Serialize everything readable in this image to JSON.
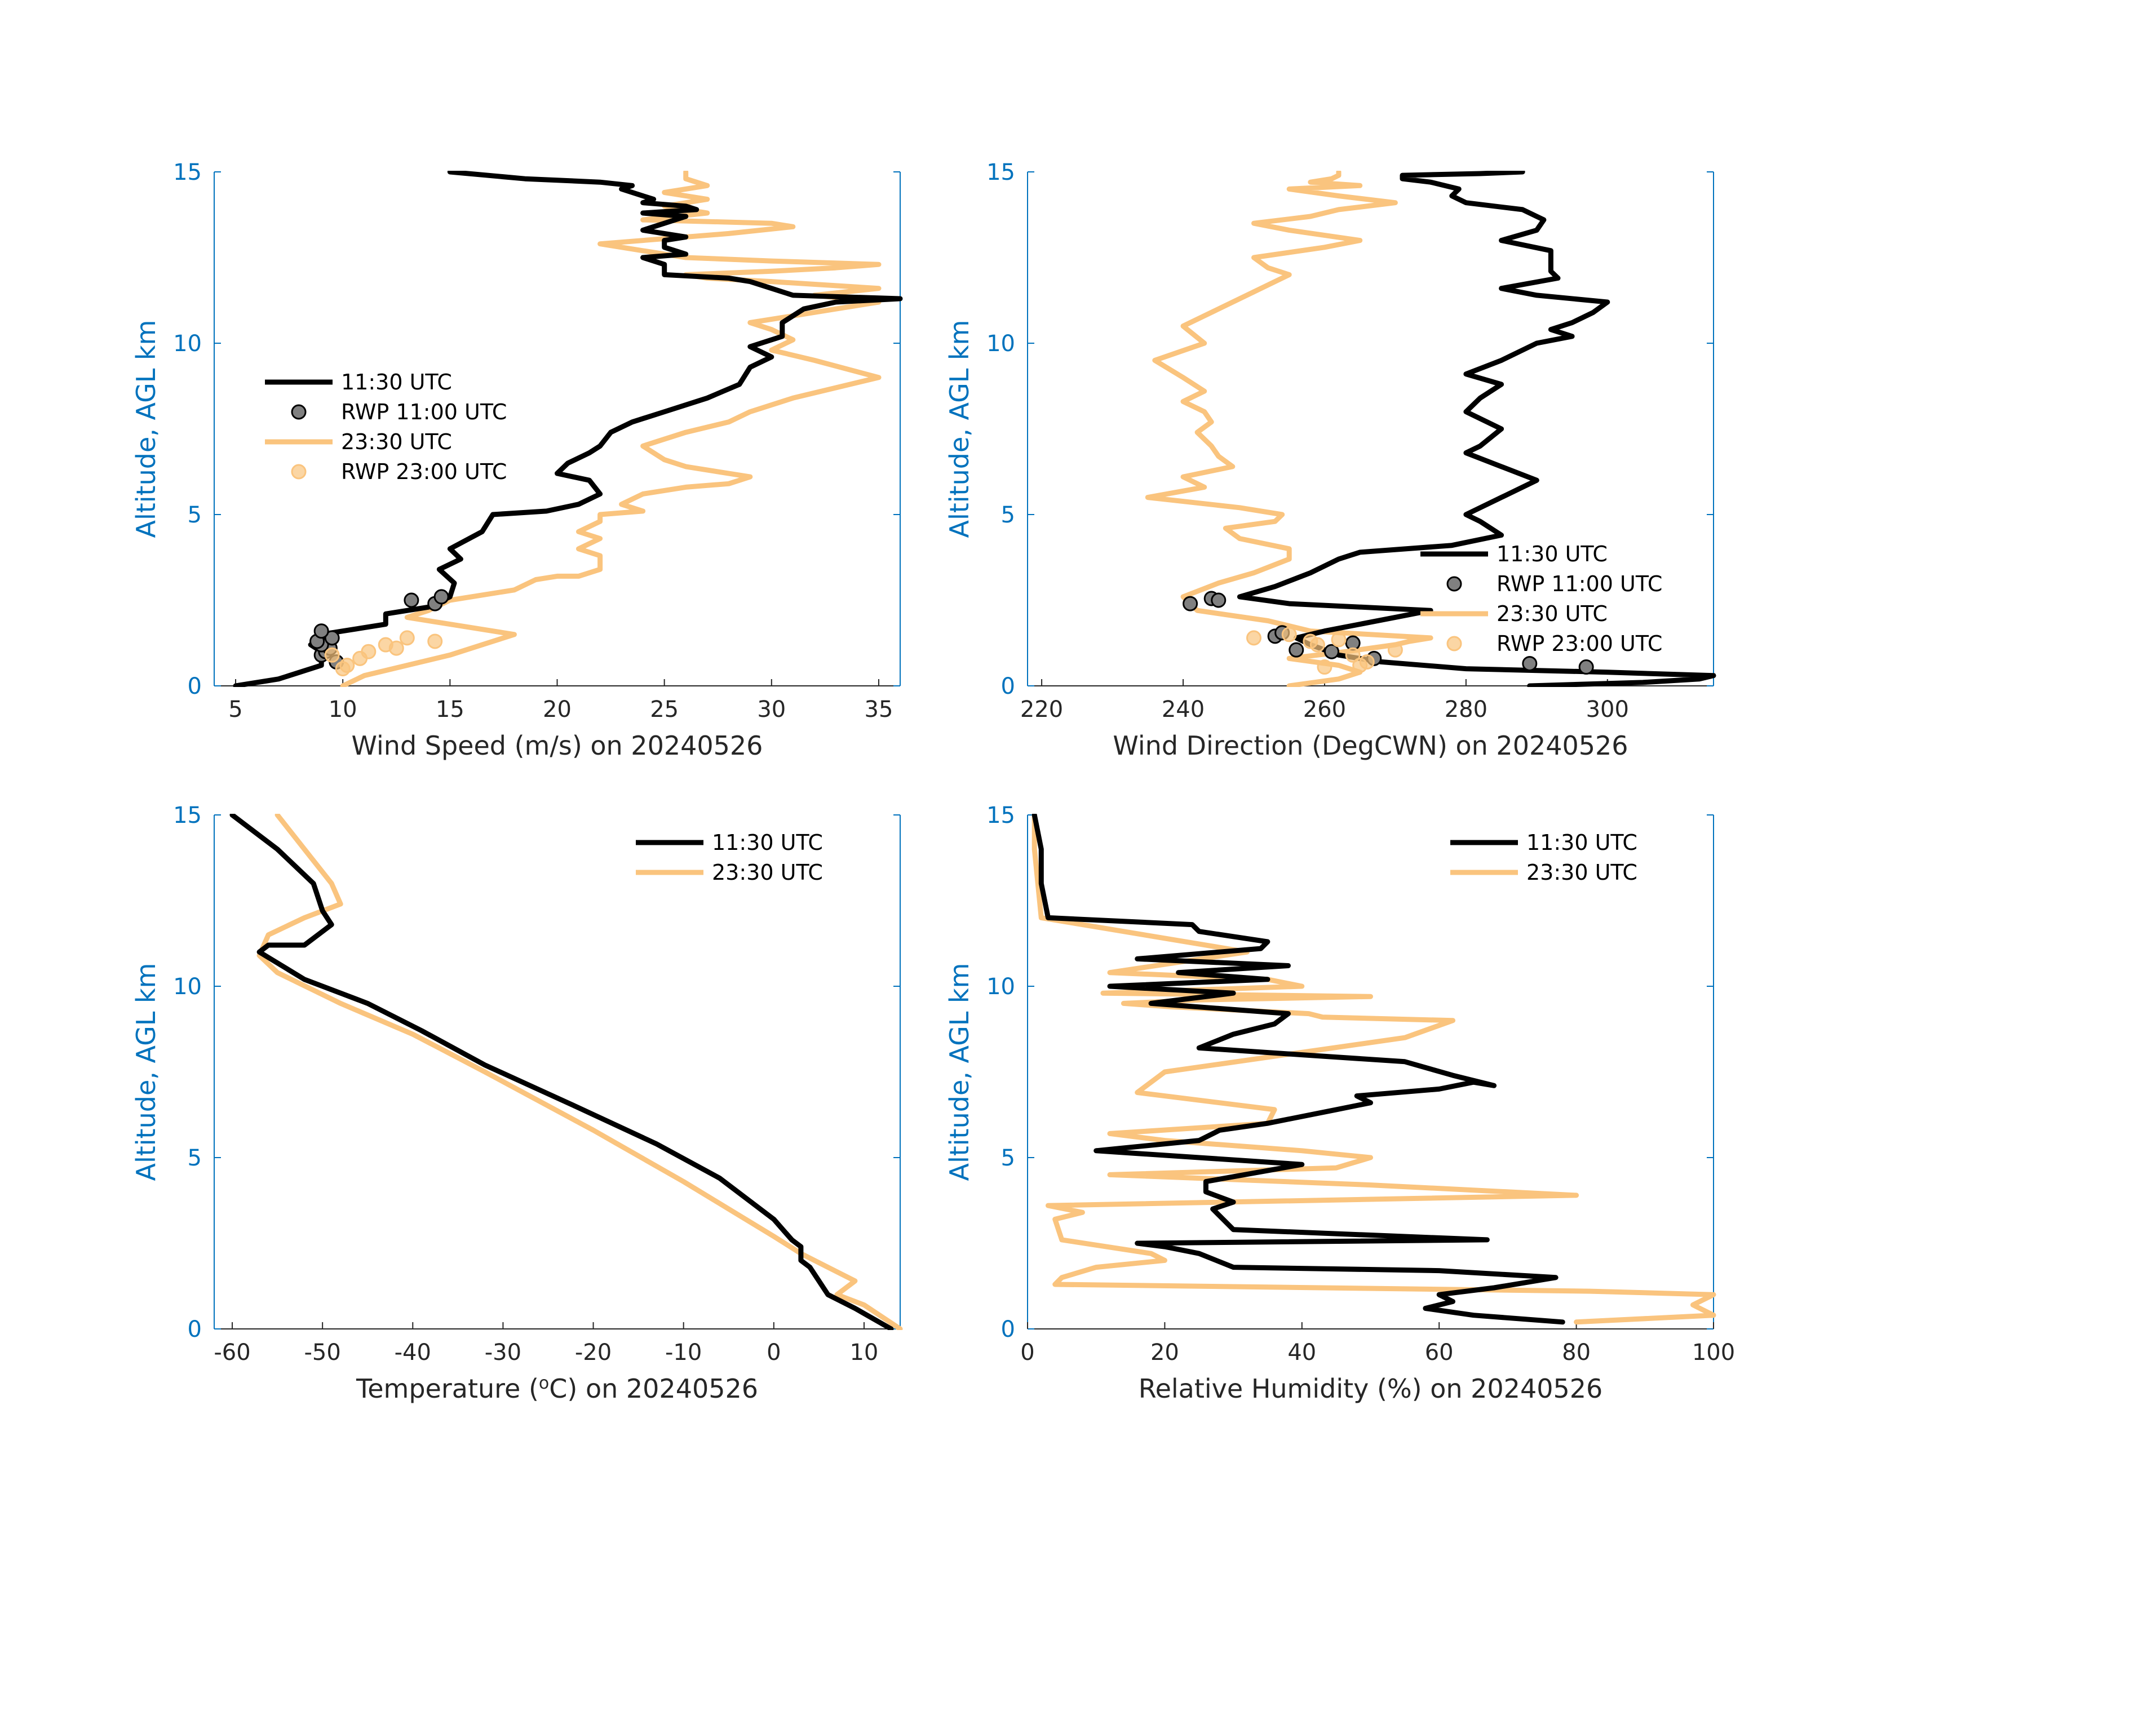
{
  "figure": {
    "date": "20240526"
  },
  "colors": {
    "black": "#000000",
    "orange": "#FAC47E",
    "axis_blue": "#0072BD",
    "marker_gray": "#808080"
  },
  "chart_data": [
    {
      "id": "wind_speed",
      "type": "line",
      "xlabel": "Wind Speed (m/s) on 20240526",
      "ylabel": "Altitude, AGL km",
      "xlim": [
        4,
        36
      ],
      "ylim": [
        0,
        15
      ],
      "xticks": [
        5,
        10,
        15,
        20,
        25,
        30,
        35
      ],
      "yticks": [
        0,
        5,
        10,
        15
      ],
      "legend_position": "center-left",
      "legend": [
        "11:30 UTC",
        "RWP 11:00 UTC",
        "23:30 UTC",
        "RWP 23:00 UTC"
      ],
      "series": [
        {
          "name": "11:30 UTC",
          "kind": "line",
          "color": "#000000",
          "x": [
            5,
            7,
            8,
            9,
            9,
            9,
            8.5,
            9.5,
            9,
            10,
            12,
            12,
            14,
            15,
            15.2,
            14.5,
            15.5,
            15,
            16.5,
            17,
            19.5,
            21,
            22,
            21.5,
            20,
            20.5,
            21.5,
            22,
            22.5,
            23.5,
            25,
            27,
            28.5,
            29,
            30,
            29,
            30.5,
            30.5,
            31.5,
            33,
            36,
            31,
            30,
            29,
            28,
            25,
            25,
            24,
            26,
            25,
            25,
            26,
            24,
            25,
            26,
            24,
            26.5,
            26,
            24,
            24.5,
            24,
            23,
            23.5,
            22,
            18.5,
            15
          ],
          "y": [
            0,
            0.2,
            0.4,
            0.6,
            0.8,
            1.0,
            1.2,
            1.4,
            1.5,
            1.6,
            1.8,
            2.1,
            2.3,
            2.6,
            3.0,
            3.4,
            3.7,
            4.0,
            4.5,
            5.0,
            5.1,
            5.3,
            5.6,
            6.0,
            6.2,
            6.5,
            6.8,
            7.0,
            7.4,
            7.7,
            8.0,
            8.4,
            8.8,
            9.3,
            9.6,
            9.9,
            10.2,
            10.6,
            11.0,
            11.2,
            11.3,
            11.4,
            11.6,
            11.8,
            11.9,
            12.0,
            12.3,
            12.5,
            12.6,
            12.8,
            13.0,
            13.1,
            13.3,
            13.5,
            13.7,
            13.8,
            13.9,
            14.0,
            14.1,
            14.2,
            14.3,
            14.5,
            14.6,
            14.7,
            14.8,
            15.0
          ]
        },
        {
          "name": "RWP 11:00 UTC",
          "kind": "scatter",
          "color": "#808080",
          "x": [
            9.7,
            9.0,
            9.2,
            9.4,
            9.0,
            8.8,
            9.5,
            9.0,
            13.2,
            14.3,
            14.6
          ],
          "y": [
            0.7,
            0.9,
            1.0,
            1.1,
            1.2,
            1.3,
            1.4,
            1.6,
            2.5,
            2.4,
            2.6
          ]
        },
        {
          "name": "23:30 UTC",
          "kind": "line",
          "color": "#FAC47E",
          "x": [
            10,
            11,
            13,
            15,
            18,
            15,
            13,
            14,
            15,
            18,
            19,
            20,
            21,
            22,
            22,
            21,
            22,
            21,
            22,
            22,
            24,
            23,
            24,
            26,
            28,
            29,
            26,
            25,
            24,
            25,
            26,
            28,
            29,
            31,
            33,
            35,
            32,
            30,
            31,
            30,
            29,
            31,
            33,
            35,
            32,
            35,
            30,
            27,
            26,
            30,
            33,
            35,
            30,
            26,
            22,
            28,
            31,
            30,
            24,
            27,
            25,
            27,
            25,
            27,
            26,
            26
          ],
          "y": [
            0,
            0.3,
            0.6,
            0.9,
            1.5,
            1.8,
            2.0,
            2.2,
            2.5,
            2.8,
            3.1,
            3.2,
            3.2,
            3.4,
            3.8,
            4.0,
            4.3,
            4.5,
            4.8,
            5.0,
            5.1,
            5.3,
            5.6,
            5.8,
            5.9,
            6.1,
            6.4,
            6.6,
            7.0,
            7.2,
            7.4,
            7.7,
            8.0,
            8.4,
            8.7,
            9.0,
            9.5,
            9.8,
            10.1,
            10.4,
            10.6,
            10.8,
            11.0,
            11.2,
            11.4,
            11.6,
            11.8,
            11.9,
            12.0,
            12.1,
            12.2,
            12.3,
            12.4,
            12.5,
            12.9,
            13.2,
            13.4,
            13.5,
            13.6,
            13.8,
            14.0,
            14.2,
            14.4,
            14.6,
            14.8,
            15.0
          ]
        },
        {
          "name": "RWP 23:00 UTC",
          "kind": "scatter",
          "color": "#FAC47E",
          "x": [
            10.2,
            10.8,
            11.2,
            9.5,
            12.5,
            13.0,
            14.3,
            12.0,
            10.0
          ],
          "y": [
            0.6,
            0.8,
            1.0,
            0.9,
            1.1,
            1.4,
            1.3,
            1.2,
            0.5
          ]
        }
      ]
    },
    {
      "id": "wind_direction",
      "type": "line",
      "xlabel": "Wind Direction (DegCWN) on 20240526",
      "ylabel": "Altitude, AGL km",
      "xlim": [
        218,
        315
      ],
      "ylim": [
        0,
        15
      ],
      "xticks": [
        220,
        240,
        260,
        280,
        300
      ],
      "yticks": [
        0,
        5,
        10,
        15
      ],
      "legend_position": "lower-right",
      "legend": [
        "11:30 UTC",
        "RWP 11:00 UTC",
        "23:30 UTC",
        "RWP 23:00 UTC"
      ],
      "series": [
        {
          "name": "11:30 UTC",
          "kind": "line",
          "color": "#000000",
          "x": [
            289,
            305,
            313,
            315,
            300,
            280,
            268,
            262,
            258,
            256,
            260,
            270,
            275,
            255,
            248,
            253,
            258,
            262,
            265,
            278,
            285,
            282,
            280,
            285,
            290,
            285,
            280,
            282,
            285,
            280,
            282,
            285,
            280,
            285,
            290,
            295,
            292,
            295,
            298,
            300,
            290,
            285,
            293,
            292,
            292,
            292,
            285,
            290,
            291,
            288,
            280,
            278,
            279,
            275,
            271,
            271,
            282,
            288
          ],
          "y": [
            0,
            0.1,
            0.2,
            0.3,
            0.4,
            0.5,
            0.7,
            0.9,
            1.2,
            1.4,
            1.6,
            2.0,
            2.2,
            2.4,
            2.6,
            2.9,
            3.3,
            3.7,
            3.9,
            4.1,
            4.4,
            4.8,
            5.0,
            5.5,
            6.0,
            6.4,
            6.8,
            7.0,
            7.5,
            8.0,
            8.4,
            8.8,
            9.1,
            9.5,
            10.0,
            10.2,
            10.4,
            10.6,
            10.9,
            11.2,
            11.4,
            11.6,
            11.9,
            12.1,
            12.4,
            12.7,
            13.0,
            13.3,
            13.6,
            13.9,
            14.1,
            14.3,
            14.5,
            14.7,
            14.8,
            14.9,
            14.95,
            15.0
          ]
        },
        {
          "name": "RWP 11:00 UTC",
          "kind": "scatter",
          "color": "#808080",
          "x": [
            297,
            289,
            267,
            261,
            256,
            264,
            253,
            254,
            244,
            245,
            241
          ],
          "y": [
            0.55,
            0.65,
            0.8,
            1.0,
            1.05,
            1.25,
            1.45,
            1.55,
            2.55,
            2.5,
            2.4
          ]
        },
        {
          "name": "23:30 UTC",
          "kind": "line",
          "color": "#FAC47E",
          "x": [
            255,
            262,
            265,
            262,
            255,
            263,
            270,
            272,
            275,
            258,
            252,
            242,
            240,
            245,
            250,
            255,
            255,
            248,
            246,
            253,
            254,
            248,
            235,
            243,
            240,
            247,
            245,
            244,
            242,
            244,
            243,
            240,
            243,
            240,
            236,
            243,
            240,
            245,
            250,
            255,
            252,
            250,
            260,
            265,
            255,
            250,
            258,
            262,
            270,
            262,
            255,
            265,
            258,
            261,
            262,
            262
          ],
          "y": [
            0,
            0.2,
            0.4,
            0.6,
            0.8,
            1.0,
            1.2,
            1.3,
            1.4,
            1.6,
            1.9,
            2.2,
            2.6,
            3.0,
            3.3,
            3.7,
            4.0,
            4.3,
            4.6,
            4.8,
            5.0,
            5.2,
            5.5,
            5.8,
            6.1,
            6.4,
            6.7,
            7.0,
            7.4,
            7.7,
            8.0,
            8.3,
            8.6,
            9.0,
            9.5,
            10.0,
            10.5,
            11.0,
            11.5,
            12.0,
            12.2,
            12.5,
            12.8,
            13.0,
            13.3,
            13.5,
            13.7,
            13.9,
            14.1,
            14.3,
            14.5,
            14.6,
            14.7,
            14.8,
            14.9,
            15.0
          ]
        },
        {
          "name": "RWP 23:00 UTC",
          "kind": "scatter",
          "color": "#FAC47E",
          "x": [
            260,
            265,
            266,
            264,
            270,
            259,
            258,
            262,
            250,
            255
          ],
          "y": [
            0.55,
            0.6,
            0.7,
            0.9,
            1.05,
            1.2,
            1.3,
            1.35,
            1.4,
            1.5
          ]
        }
      ]
    },
    {
      "id": "temperature",
      "type": "line",
      "xlabel": "Temperature (oC) on 20240526",
      "xlabel_main": "Temperature (",
      "xlabel_sup": "o",
      "xlabel_end": "C) on 20240526",
      "ylabel": "Altitude, AGL km",
      "xlim": [
        -62,
        14
      ],
      "ylim": [
        0,
        15
      ],
      "xticks": [
        -60,
        -50,
        -40,
        -30,
        -20,
        -10,
        0,
        10
      ],
      "yticks": [
        0,
        5,
        10,
        15
      ],
      "legend_position": "top-right",
      "legend": [
        "11:30 UTC",
        "23:30 UTC"
      ],
      "series": [
        {
          "name": "11:30 UTC",
          "color": "#000000",
          "x": [
            13,
            9,
            6,
            5,
            4,
            3,
            3,
            2,
            0,
            -6,
            -13,
            -22,
            -32,
            -39,
            -45,
            -52,
            -57,
            -56,
            -52,
            -49,
            -50,
            -51,
            -55,
            -60
          ],
          "y": [
            0,
            0.6,
            1.0,
            1.4,
            1.8,
            2.0,
            2.4,
            2.6,
            3.2,
            4.4,
            5.4,
            6.5,
            7.7,
            8.7,
            9.5,
            10.2,
            11.0,
            11.2,
            11.2,
            11.8,
            12.2,
            13.0,
            14.0,
            15.0
          ]
        },
        {
          "name": "23:30 UTC",
          "color": "#FAC47E",
          "x": [
            14,
            10,
            7,
            9,
            6,
            3,
            0,
            -10,
            -20,
            -32,
            -40,
            -48,
            -55,
            -57,
            -56,
            -52,
            -48,
            -49,
            -52,
            -55
          ],
          "y": [
            0,
            0.7,
            1.0,
            1.4,
            1.8,
            2.2,
            2.7,
            4.3,
            5.8,
            7.5,
            8.6,
            9.5,
            10.4,
            10.9,
            11.5,
            12.0,
            12.4,
            13.0,
            14.0,
            15.0
          ]
        }
      ]
    },
    {
      "id": "relative_humidity",
      "type": "line",
      "xlabel": "Relative Humidity (%) on 20240526",
      "ylabel": "Altitude, AGL km",
      "xlim": [
        0,
        100
      ],
      "ylim": [
        0,
        15
      ],
      "xticks": [
        0,
        20,
        40,
        60,
        80,
        100
      ],
      "yticks": [
        0,
        5,
        10,
        15
      ],
      "legend_position": "top-right",
      "legend": [
        "11:30 UTC",
        "23:30 UTC"
      ],
      "series": [
        {
          "name": "11:30 UTC",
          "color": "#000000",
          "x": [
            78,
            65,
            58,
            62,
            60,
            68,
            77,
            60,
            30,
            25,
            20,
            16,
            67,
            30,
            27,
            30,
            26,
            26,
            40,
            10,
            25,
            28,
            35,
            45,
            50,
            48,
            60,
            65,
            68,
            62,
            55,
            40,
            25,
            30,
            36,
            38,
            18,
            30,
            12,
            35,
            22,
            38,
            16,
            28,
            34,
            35,
            25,
            24,
            3,
            2,
            2,
            1
          ],
          "y": [
            0.2,
            0.4,
            0.6,
            0.8,
            1.0,
            1.2,
            1.5,
            1.7,
            1.8,
            2.2,
            2.4,
            2.5,
            2.6,
            2.9,
            3.5,
            3.7,
            4.0,
            4.3,
            4.8,
            5.2,
            5.5,
            5.8,
            6.0,
            6.4,
            6.6,
            6.8,
            7.0,
            7.2,
            7.1,
            7.4,
            7.8,
            8.0,
            8.2,
            8.6,
            8.9,
            9.2,
            9.5,
            9.8,
            10.0,
            10.2,
            10.4,
            10.6,
            10.8,
            11.0,
            11.1,
            11.3,
            11.6,
            11.8,
            12.0,
            13.0,
            14.0,
            15.0
          ]
        },
        {
          "name": "23:30 UTC",
          "color": "#FAC47E",
          "x": [
            80,
            100,
            97,
            100,
            82,
            4,
            5,
            10,
            20,
            18,
            5,
            4,
            8,
            3,
            80,
            50,
            12,
            45,
            50,
            40,
            20,
            12,
            35,
            36,
            16,
            20,
            55,
            62,
            43,
            41,
            21,
            14,
            25,
            50,
            11,
            40,
            35,
            12,
            32,
            2,
            1,
            1
          ],
          "y": [
            0.2,
            0.4,
            0.7,
            1.0,
            1.1,
            1.3,
            1.5,
            1.8,
            2.0,
            2.2,
            2.6,
            3.2,
            3.4,
            3.6,
            3.9,
            4.2,
            4.5,
            4.7,
            5.0,
            5.2,
            5.5,
            5.7,
            6.0,
            6.4,
            6.9,
            7.5,
            8.5,
            9.0,
            9.1,
            9.2,
            9.4,
            9.5,
            9.6,
            9.7,
            9.8,
            10.0,
            10.2,
            10.4,
            11.0,
            12.0,
            14.0,
            15.0
          ]
        }
      ]
    }
  ]
}
